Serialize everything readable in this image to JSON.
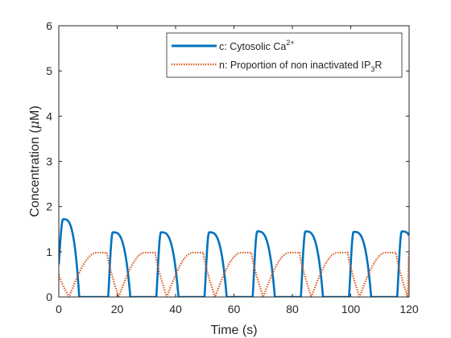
{
  "chart_data": {
    "type": "line",
    "title": "",
    "xlabel": "Time (s)",
    "ylabel_parts": {
      "before": "Concentration (",
      "mu": "μ",
      "after": "M)"
    },
    "xlim": [
      0,
      120
    ],
    "ylim": [
      0,
      6
    ],
    "x_ticks": [
      "0",
      "20",
      "40",
      "60",
      "80",
      "100",
      "120"
    ],
    "y_ticks": [
      "0",
      "1",
      "2",
      "3",
      "4",
      "5",
      "6"
    ],
    "grid": false,
    "legend": {
      "placement": "top-right",
      "entries": [
        {
          "label_main": "c: Cytosolic Ca",
          "label_sup": "2+",
          "label_sub": "",
          "label_tail": ""
        },
        {
          "label_main": "n: Proportion of non inactivated IP",
          "label_sup": "",
          "label_sub": "3",
          "label_tail": "R"
        }
      ]
    },
    "colors": {
      "c": "#0072BD",
      "n": "#D95319",
      "axis": "#262626"
    },
    "series": [
      {
        "name": "c: Cytosolic Ca2+",
        "style": "solid",
        "peaks": [
          {
            "t": 1.5,
            "peak": 1.72,
            "rise": 1.3,
            "dur": 5.5
          },
          {
            "t": 18.5,
            "peak": 1.43,
            "rise": 1.6,
            "dur": 6.0
          },
          {
            "t": 35.0,
            "peak": 1.43,
            "rise": 1.6,
            "dur": 6.0
          },
          {
            "t": 51.5,
            "peak": 1.43,
            "rise": 1.6,
            "dur": 6.0
          },
          {
            "t": 68.0,
            "peak": 1.45,
            "rise": 1.6,
            "dur": 6.0
          },
          {
            "t": 84.5,
            "peak": 1.45,
            "rise": 1.6,
            "dur": 6.0
          },
          {
            "t": 101.0,
            "peak": 1.44,
            "rise": 1.6,
            "dur": 6.0
          },
          {
            "t": 117.5,
            "peak": 1.45,
            "rise": 1.6,
            "dur": 6.0
          }
        ],
        "start_value": 0.72,
        "end_value": 0.3
      },
      {
        "name": "n: Proportion of non inactivated IP3R",
        "style": "dotted",
        "start_value": 0.5,
        "plateau": 0.98,
        "cycles": [
          {
            "fall_start": 0.0,
            "zero": 3.5,
            "rise_end": 13.0,
            "plateau_end": 16.5
          },
          {
            "fall_start": 16.5,
            "zero": 20.5,
            "rise_end": 29.5,
            "plateau_end": 33.0
          },
          {
            "fall_start": 33.0,
            "zero": 37.0,
            "rise_end": 46.0,
            "plateau_end": 49.5
          },
          {
            "fall_start": 49.5,
            "zero": 53.5,
            "rise_end": 62.5,
            "plateau_end": 66.0
          },
          {
            "fall_start": 66.0,
            "zero": 70.0,
            "rise_end": 79.0,
            "plateau_end": 82.5
          },
          {
            "fall_start": 82.5,
            "zero": 86.5,
            "rise_end": 95.5,
            "plateau_end": 99.0
          },
          {
            "fall_start": 99.0,
            "zero": 103.0,
            "rise_end": 112.0,
            "plateau_end": 115.5
          },
          {
            "fall_start": 115.5,
            "zero": 119.5,
            "rise_end": 120.0,
            "plateau_end": 120.0
          }
        ]
      }
    ]
  }
}
